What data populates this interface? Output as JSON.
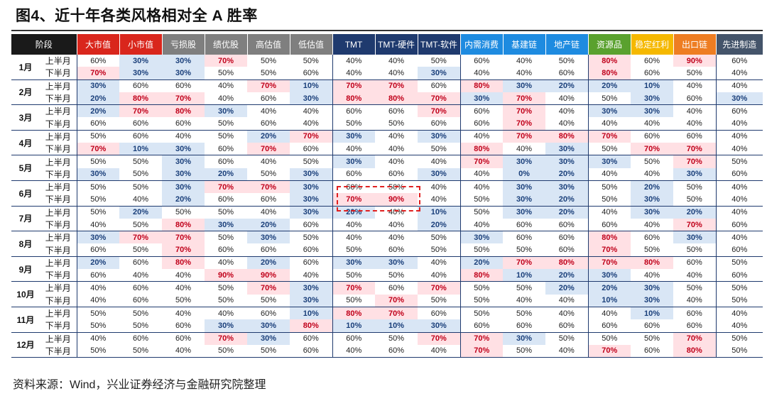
{
  "title": "图4、近十年各类风格相对全 A 胜率",
  "source": "资料来源：Wind，兴业证券经济与金融研究院整理",
  "colors": {
    "header_dark": "#1a1a1a",
    "header_red": "#d9261c",
    "header_gray": "#7f7f7f",
    "header_navy": "#1f3a6e",
    "header_blue": "#1e8be0",
    "header_green": "#5aa12e",
    "header_yellow": "#f5b800",
    "header_orange": "#ee7d22",
    "header_slate": "#44546a",
    "high": "#ffe0e4",
    "low": "#d9e6f5",
    "highlight_box": "#e02020"
  },
  "table": {
    "columns": [
      {
        "label": "阶段",
        "color": "#1a1a1a"
      },
      {
        "label": "大市值",
        "color": "#d9261c"
      },
      {
        "label": "小市值",
        "color": "#d9261c"
      },
      {
        "label": "亏损股",
        "color": "#7f7f7f"
      },
      {
        "label": "绩优股",
        "color": "#7f7f7f"
      },
      {
        "label": "高估值",
        "color": "#7f7f7f"
      },
      {
        "label": "低估值",
        "color": "#7f7f7f"
      },
      {
        "label": "TMT",
        "color": "#1f3a6e"
      },
      {
        "label": "TMT-硬件",
        "color": "#1f3a6e"
      },
      {
        "label": "TMT-软件",
        "color": "#1f3a6e"
      },
      {
        "label": "内需消费",
        "color": "#1e8be0"
      },
      {
        "label": "基建链",
        "color": "#1e8be0"
      },
      {
        "label": "地产链",
        "color": "#1e8be0"
      },
      {
        "label": "资源品",
        "color": "#5aa12e"
      },
      {
        "label": "稳定红利",
        "color": "#f5b800"
      },
      {
        "label": "出口链",
        "color": "#ee7d22"
      },
      {
        "label": "先进制造",
        "color": "#44546a"
      }
    ],
    "half_labels": [
      "上半月",
      "下半月"
    ],
    "months": [
      {
        "month": "1月",
        "rows": [
          [
            "60%",
            "30%",
            "30%",
            "70%",
            "50%",
            "50%",
            "40%",
            "40%",
            "50%",
            "60%",
            "40%",
            "50%",
            "80%",
            "60%",
            "90%",
            "60%"
          ],
          [
            "70%",
            "30%",
            "30%",
            "50%",
            "50%",
            "60%",
            "40%",
            "40%",
            "30%",
            "40%",
            "40%",
            "60%",
            "80%",
            "60%",
            "50%",
            "40%"
          ]
        ]
      },
      {
        "month": "2月",
        "rows": [
          [
            "30%",
            "60%",
            "60%",
            "40%",
            "70%",
            "10%",
            "70%",
            "70%",
            "60%",
            "80%",
            "30%",
            "20%",
            "20%",
            "10%",
            "40%",
            "40%"
          ],
          [
            "20%",
            "80%",
            "70%",
            "40%",
            "60%",
            "30%",
            "80%",
            "80%",
            "70%",
            "30%",
            "70%",
            "40%",
            "50%",
            "30%",
            "60%",
            "30%"
          ]
        ]
      },
      {
        "month": "3月",
        "rows": [
          [
            "20%",
            "70%",
            "80%",
            "30%",
            "40%",
            "40%",
            "60%",
            "60%",
            "70%",
            "60%",
            "70%",
            "40%",
            "30%",
            "30%",
            "40%",
            "60%"
          ],
          [
            "60%",
            "60%",
            "60%",
            "50%",
            "60%",
            "40%",
            "50%",
            "50%",
            "60%",
            "60%",
            "70%",
            "40%",
            "40%",
            "40%",
            "40%",
            "40%"
          ]
        ]
      },
      {
        "month": "4月",
        "rows": [
          [
            "50%",
            "60%",
            "40%",
            "50%",
            "20%",
            "70%",
            "30%",
            "40%",
            "30%",
            "40%",
            "70%",
            "80%",
            "70%",
            "60%",
            "60%",
            "40%"
          ],
          [
            "70%",
            "10%",
            "30%",
            "60%",
            "70%",
            "60%",
            "40%",
            "40%",
            "50%",
            "80%",
            "40%",
            "30%",
            "50%",
            "70%",
            "70%",
            "40%"
          ]
        ]
      },
      {
        "month": "5月",
        "rows": [
          [
            "50%",
            "50%",
            "30%",
            "60%",
            "40%",
            "50%",
            "30%",
            "40%",
            "40%",
            "70%",
            "30%",
            "30%",
            "30%",
            "50%",
            "70%",
            "50%"
          ],
          [
            "30%",
            "50%",
            "30%",
            "20%",
            "50%",
            "30%",
            "60%",
            "60%",
            "30%",
            "40%",
            "0%",
            "20%",
            "40%",
            "40%",
            "30%",
            "60%"
          ]
        ]
      },
      {
        "month": "6月",
        "rows": [
          [
            "50%",
            "50%",
            "30%",
            "70%",
            "70%",
            "30%",
            "60%",
            "50%",
            "40%",
            "40%",
            "30%",
            "30%",
            "50%",
            "20%",
            "50%",
            "40%"
          ],
          [
            "50%",
            "40%",
            "20%",
            "60%",
            "60%",
            "30%",
            "70%",
            "90%",
            "40%",
            "50%",
            "30%",
            "20%",
            "50%",
            "30%",
            "50%",
            "40%"
          ]
        ]
      },
      {
        "month": "7月",
        "rows": [
          [
            "50%",
            "20%",
            "50%",
            "50%",
            "40%",
            "30%",
            "20%",
            "40%",
            "10%",
            "50%",
            "30%",
            "20%",
            "40%",
            "30%",
            "20%",
            "40%"
          ],
          [
            "40%",
            "50%",
            "80%",
            "30%",
            "20%",
            "60%",
            "40%",
            "40%",
            "20%",
            "40%",
            "60%",
            "60%",
            "60%",
            "40%",
            "70%",
            "60%"
          ]
        ]
      },
      {
        "month": "8月",
        "rows": [
          [
            "30%",
            "70%",
            "70%",
            "50%",
            "30%",
            "50%",
            "40%",
            "40%",
            "50%",
            "30%",
            "60%",
            "60%",
            "80%",
            "60%",
            "30%",
            "40%"
          ],
          [
            "60%",
            "50%",
            "70%",
            "60%",
            "60%",
            "60%",
            "50%",
            "60%",
            "50%",
            "50%",
            "50%",
            "60%",
            "70%",
            "50%",
            "50%",
            "60%"
          ]
        ]
      },
      {
        "month": "9月",
        "rows": [
          [
            "20%",
            "60%",
            "80%",
            "40%",
            "20%",
            "60%",
            "30%",
            "30%",
            "40%",
            "20%",
            "70%",
            "80%",
            "70%",
            "80%",
            "60%",
            "50%"
          ],
          [
            "60%",
            "40%",
            "40%",
            "90%",
            "90%",
            "40%",
            "50%",
            "50%",
            "40%",
            "80%",
            "10%",
            "20%",
            "30%",
            "40%",
            "40%",
            "60%"
          ]
        ]
      },
      {
        "month": "10月",
        "rows": [
          [
            "40%",
            "60%",
            "40%",
            "50%",
            "70%",
            "30%",
            "70%",
            "60%",
            "70%",
            "50%",
            "50%",
            "20%",
            "20%",
            "30%",
            "50%",
            "50%"
          ],
          [
            "40%",
            "60%",
            "50%",
            "50%",
            "50%",
            "30%",
            "50%",
            "70%",
            "50%",
            "50%",
            "40%",
            "40%",
            "10%",
            "30%",
            "40%",
            "50%"
          ]
        ]
      },
      {
        "month": "11月",
        "rows": [
          [
            "50%",
            "50%",
            "40%",
            "40%",
            "60%",
            "10%",
            "80%",
            "70%",
            "60%",
            "50%",
            "50%",
            "40%",
            "40%",
            "10%",
            "60%",
            "40%"
          ],
          [
            "50%",
            "50%",
            "60%",
            "30%",
            "30%",
            "80%",
            "10%",
            "10%",
            "30%",
            "60%",
            "60%",
            "60%",
            "60%",
            "60%",
            "60%",
            "40%"
          ]
        ]
      },
      {
        "month": "12月",
        "rows": [
          [
            "40%",
            "60%",
            "60%",
            "70%",
            "30%",
            "60%",
            "60%",
            "50%",
            "70%",
            "70%",
            "30%",
            "50%",
            "50%",
            "50%",
            "70%",
            "50%"
          ],
          [
            "50%",
            "50%",
            "40%",
            "50%",
            "50%",
            "60%",
            "40%",
            "60%",
            "40%",
            "70%",
            "50%",
            "40%",
            "70%",
            "60%",
            "80%",
            "50%"
          ]
        ]
      }
    ]
  }
}
